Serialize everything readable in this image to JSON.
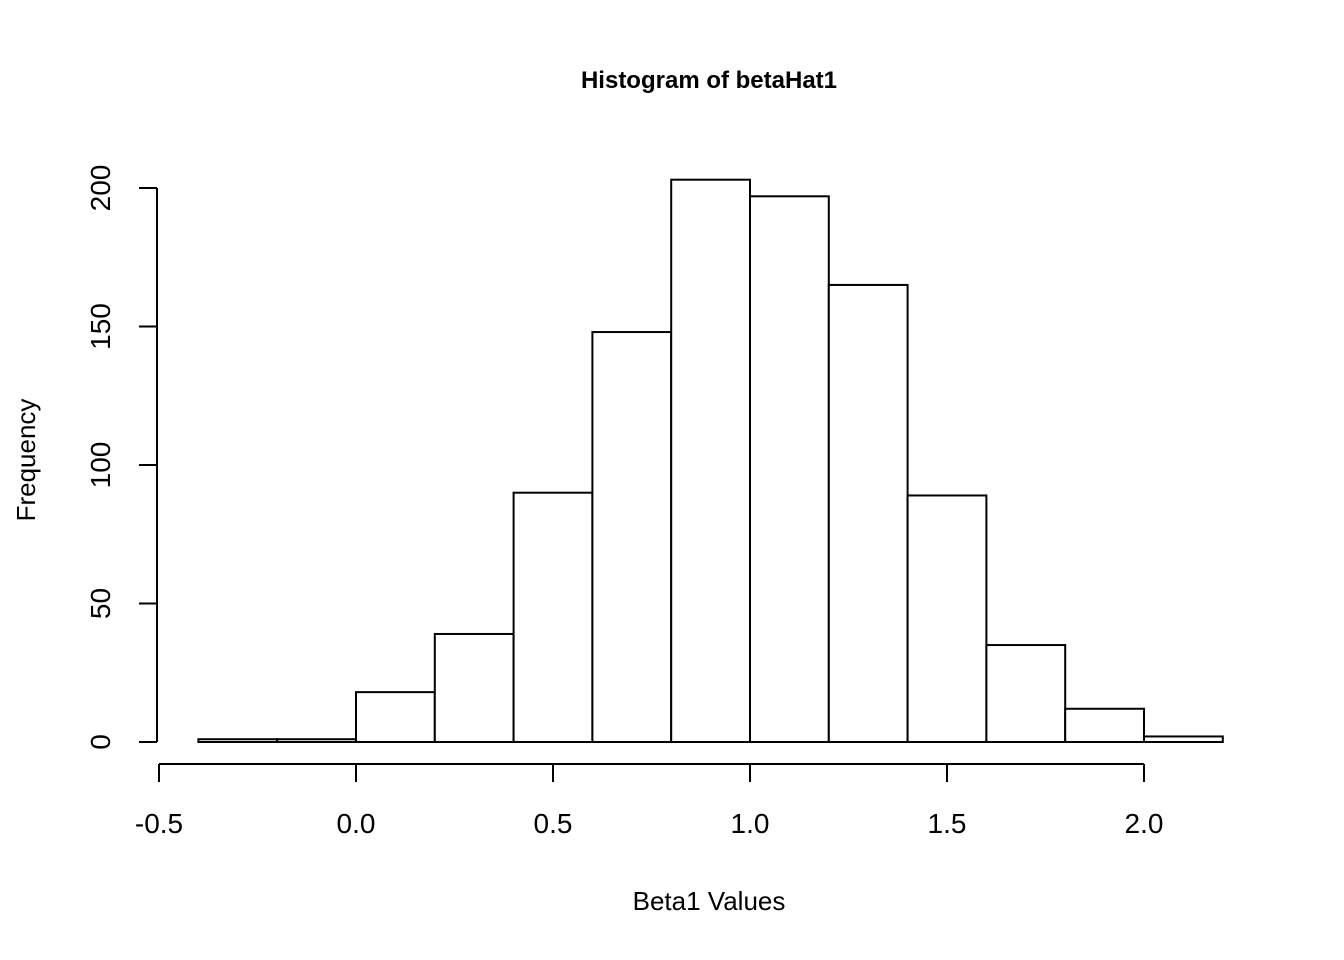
{
  "chart_data": {
    "type": "bar",
    "title": "Histogram of betaHat1",
    "xlabel": "Beta1 Values",
    "ylabel": "Frequency",
    "bins": [
      {
        "start": -0.4,
        "end": -0.2,
        "count": 1
      },
      {
        "start": -0.2,
        "end": 0.0,
        "count": 1
      },
      {
        "start": 0.0,
        "end": 0.2,
        "count": 18
      },
      {
        "start": 0.2,
        "end": 0.4,
        "count": 39
      },
      {
        "start": 0.4,
        "end": 0.6,
        "count": 90
      },
      {
        "start": 0.6,
        "end": 0.8,
        "count": 148
      },
      {
        "start": 0.8,
        "end": 1.0,
        "count": 203
      },
      {
        "start": 1.0,
        "end": 1.2,
        "count": 197
      },
      {
        "start": 1.2,
        "end": 1.4,
        "count": 165
      },
      {
        "start": 1.4,
        "end": 1.6,
        "count": 89
      },
      {
        "start": 1.6,
        "end": 1.8,
        "count": 35
      },
      {
        "start": 1.8,
        "end": 2.0,
        "count": 12
      },
      {
        "start": 2.0,
        "end": 2.2,
        "count": 2
      }
    ],
    "xticks": [
      -0.5,
      0.0,
      0.5,
      1.0,
      1.5,
      2.0
    ],
    "xtick_labels": [
      "-0.5",
      "0.0",
      "0.5",
      "1.0",
      "1.5",
      "2.0"
    ],
    "yticks": [
      0,
      50,
      100,
      150,
      200
    ],
    "ytick_labels": [
      "0",
      "50",
      "100",
      "150",
      "200"
    ],
    "xlim": [
      -0.5,
      2.2
    ],
    "ylim": [
      0,
      205
    ],
    "grid": false,
    "legend": "none",
    "colors": {
      "bar_fill": "#ffffff",
      "bar_stroke": "#000000",
      "background": "#ffffff"
    }
  }
}
